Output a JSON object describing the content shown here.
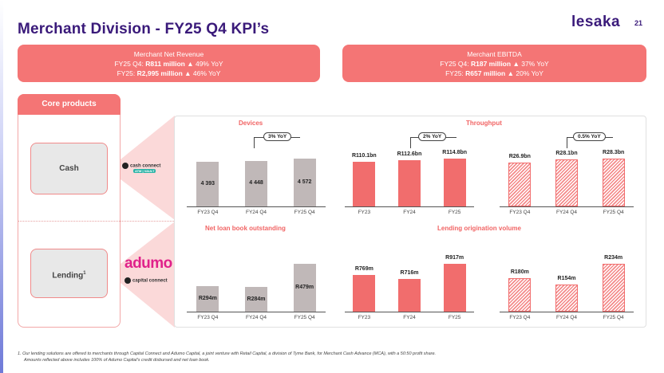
{
  "header": {
    "title": "Merchant Division - FY25 Q4 KPI’s",
    "logo": "Lesaka",
    "page_number": "21"
  },
  "kpis": {
    "revenue": {
      "heading": "Merchant Net Revenue",
      "l1_prefix": "FY25 Q4: ",
      "l1_value": "R811 million",
      "l1_suffix": " ▲ 49% YoY",
      "l2_prefix": "FY25: ",
      "l2_value": "R2,995 million",
      "l2_suffix": " ▲ 46% YoY"
    },
    "ebitda": {
      "heading": "Merchant EBITDA",
      "l1_prefix": "FY25 Q4: ",
      "l1_value": "R187 million",
      "l1_suffix": " ▲ 37% YoY",
      "l2_prefix": "FY25: ",
      "l2_value": "R657 million",
      "l2_suffix": " ▲ 20% YoY"
    }
  },
  "core": {
    "heading": "Core products",
    "cash_label": "Cash",
    "lending_label": "Lending",
    "lending_sup": "1"
  },
  "brands": {
    "cash_connect": "cash connect",
    "cash_connect_tag": "ATM | VAULT",
    "adumo": "adumo",
    "capital_connect": "capital connect"
  },
  "sections": {
    "devices": "Devices",
    "throughput": "Throughput",
    "loan_book": "Net loan book outstanding",
    "origination": "Lending origination volume"
  },
  "yoy": {
    "devices": "3% YoY",
    "throughput_annual": "2% YoY",
    "throughput_quarterly": "0.5% YoY"
  },
  "chart_data": [
    {
      "id": "devices",
      "type": "bar",
      "categories": [
        "FY23 Q4",
        "FY24 Q4",
        "FY25 Q4"
      ],
      "values": [
        4393,
        4448,
        4572
      ],
      "labels": [
        "4 393",
        "4 448",
        "4 572"
      ],
      "style": "grey",
      "label_position": "inside"
    },
    {
      "id": "throughput_annual",
      "type": "bar",
      "categories": [
        "FY23",
        "FY24",
        "FY25"
      ],
      "values": [
        110.1,
        112.6,
        114.8
      ],
      "labels": [
        "R110.1bn",
        "R112.6bn",
        "R114.8bn"
      ],
      "style": "red",
      "label_position": "above"
    },
    {
      "id": "throughput_quarterly",
      "type": "bar",
      "categories": [
        "FY23 Q4",
        "FY24 Q4",
        "FY25 Q4"
      ],
      "values": [
        26.9,
        28.1,
        28.3
      ],
      "labels": [
        "R26.9bn",
        "R28.1bn",
        "R28.3bn"
      ],
      "style": "hatch",
      "label_position": "above"
    },
    {
      "id": "loan_book",
      "type": "bar",
      "categories": [
        "FY23 Q4",
        "FY24 Q4",
        "FY25 Q4"
      ],
      "values": [
        294,
        284,
        479
      ],
      "labels": [
        "R294m",
        "R284m",
        "R479m"
      ],
      "style": "grey",
      "label_position": "inside"
    },
    {
      "id": "origination_annual",
      "type": "bar",
      "categories": [
        "FY23",
        "FY24",
        "FY25"
      ],
      "values": [
        769,
        716,
        917
      ],
      "labels": [
        "R769m",
        "R716m",
        "R917m"
      ],
      "style": "red",
      "label_position": "above"
    },
    {
      "id": "origination_quarterly",
      "type": "bar",
      "categories": [
        "FY23 Q4",
        "FY24 Q4",
        "FY25 Q4"
      ],
      "values": [
        180,
        154,
        234
      ],
      "labels": [
        "R180m",
        "R154m",
        "R234m"
      ],
      "style": "hatch",
      "label_position": "above"
    }
  ],
  "footnote": {
    "line1": "1.  Our lending solutions are offered to merchants through Capital Connect and Adumo Capital, a joint venture with Retail Capital, a division of Tyme Bank, for Merchant Cash Advance (MCA), with a 50:50 profit share.",
    "line2": "Amounts reflected above includes 100% of Adumo Capital’s credit disbursed and net loan book."
  },
  "colors": {
    "title": "#3a1a7a",
    "accent_red": "#f16d6d",
    "bar_grey": "#c0b8b8",
    "section_title": "#f16464"
  }
}
